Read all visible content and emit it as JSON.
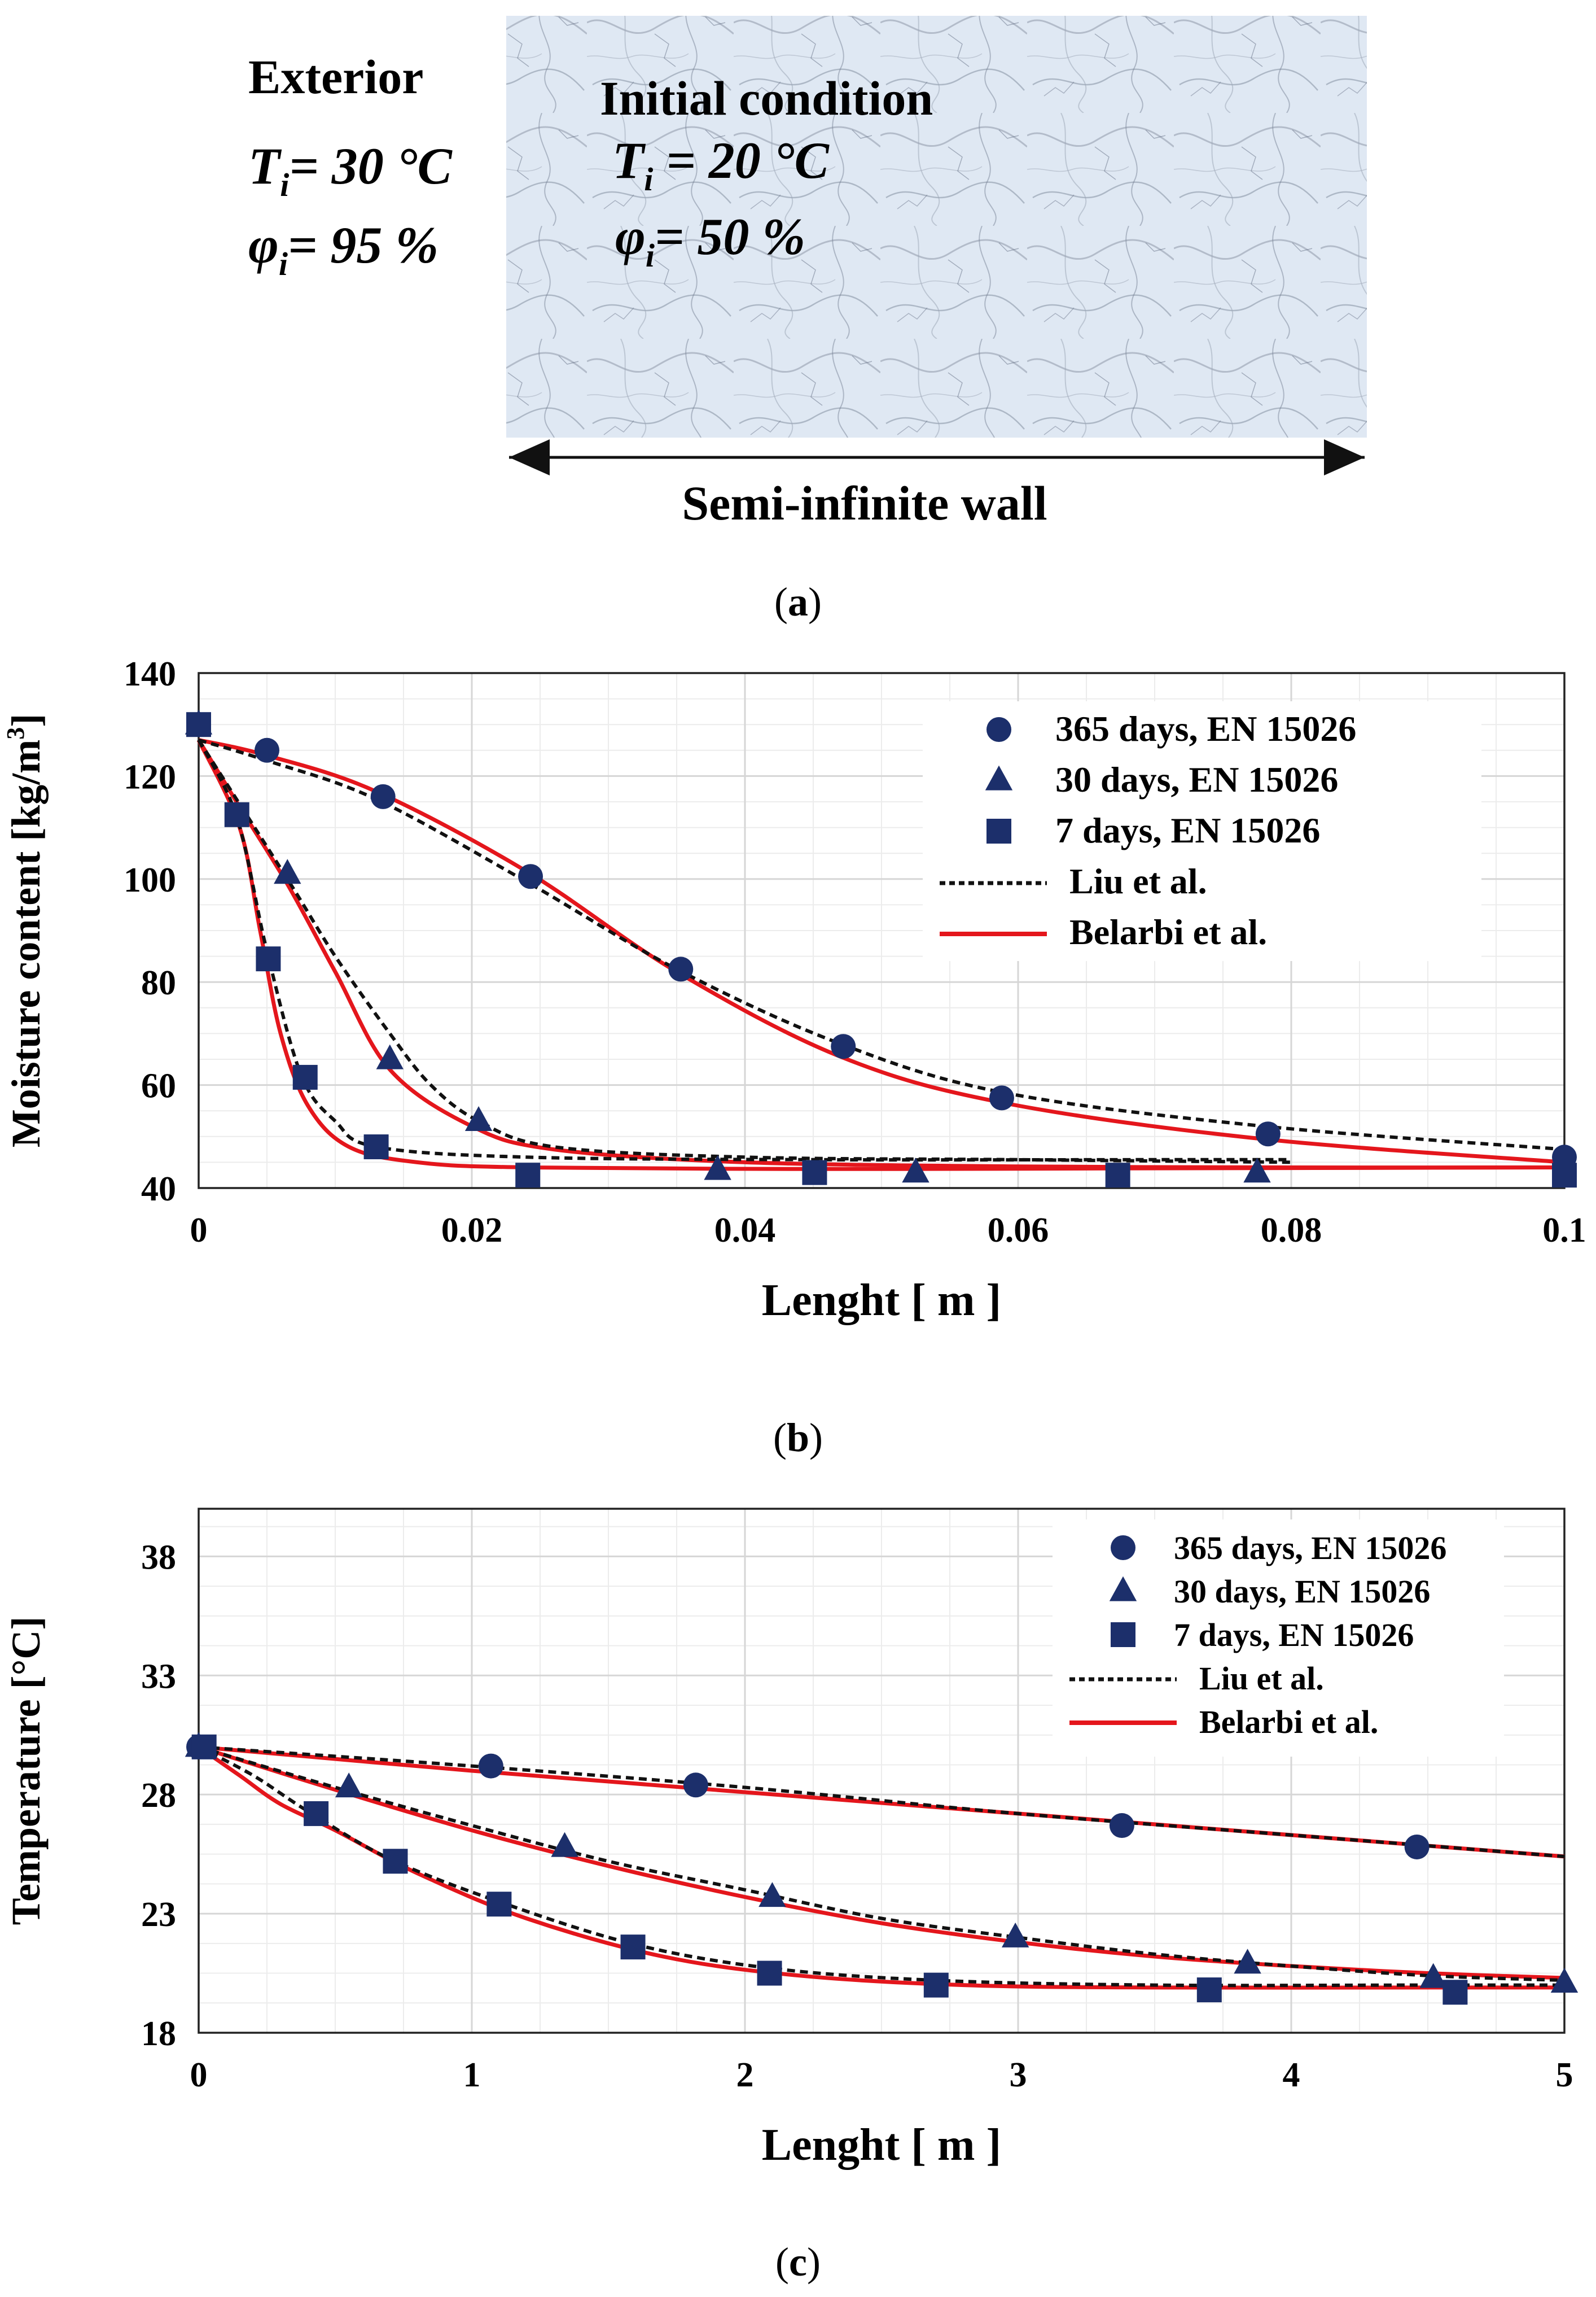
{
  "panel_a": {
    "exterior_title": "Exterior",
    "exterior_T_sym": "T",
    "exterior_T_sub": "i",
    "exterior_T_val": "= 30 °C",
    "exterior_phi_sym": "φ",
    "exterior_phi_sub": "i",
    "exterior_phi_val": "= 95 %",
    "initial_title": "Initial condition",
    "initial_T_sym": "T",
    "initial_T_sub": "i",
    "initial_T_val": " = 20 °C",
    "initial_phi_sym": "φ",
    "initial_phi_sub": "i",
    "initial_phi_val": "= 50 %",
    "wall_label": "Semi-infinite wall",
    "caption": "(a)",
    "caption_letter": "a"
  },
  "panel_b": {
    "caption": "(b)",
    "caption_letter": "b"
  },
  "panel_c": {
    "caption": "(c)",
    "caption_letter": "c"
  },
  "colors": {
    "marker": "#1c2f6b",
    "red": "#e4161c",
    "dashed": "#111111",
    "grid": "#d6d6d6"
  },
  "chart_data": [
    {
      "id": "moisture",
      "type": "line",
      "title": "",
      "xlabel": "Lenght [ m ]",
      "ylabel": "Moisture content [kg/m",
      "ylabel_sup": "3",
      "ylabel_end": "]",
      "xlim": [
        0,
        0.1
      ],
      "ylim": [
        40,
        140
      ],
      "xticks": [
        0,
        0.02,
        0.04,
        0.06,
        0.08,
        0.1
      ],
      "xtick_labels": [
        "0",
        "0.02",
        "0.04",
        "0.06",
        "0.08",
        "0.1"
      ],
      "yticks": [
        40,
        60,
        80,
        100,
        120,
        140
      ],
      "ytick_labels": [
        "40",
        "60",
        "80",
        "100",
        "120",
        "140"
      ],
      "legend": [
        {
          "label": "365 days, EN 15026",
          "kind": "circle"
        },
        {
          "label": "30 days, EN 15026",
          "kind": "triangle"
        },
        {
          "label": "7 days, EN 15026",
          "kind": "square"
        },
        {
          "label": "Liu et al.",
          "kind": "dashed"
        },
        {
          "label": "Belarbi et al.",
          "kind": "red"
        }
      ],
      "markers": [
        {
          "name": "365 days, EN 15026",
          "shape": "circle",
          "x": [
            0,
            0.005,
            0.0135,
            0.0243,
            0.0353,
            0.0472,
            0.0588,
            0.0783,
            0.1
          ],
          "y": [
            130,
            125,
            116,
            100.5,
            82.5,
            67.5,
            57.5,
            50.5,
            46
          ]
        },
        {
          "name": "30 days, EN 15026",
          "shape": "triangle",
          "x": [
            0,
            0.0065,
            0.014,
            0.0205,
            0.038,
            0.0525,
            0.0775
          ],
          "y": [
            130,
            101,
            65,
            53,
            43.5,
            43,
            43
          ]
        },
        {
          "name": "7 days, EN 15026",
          "shape": "square",
          "x": [
            0,
            0.0028,
            0.0051,
            0.0078,
            0.013,
            0.0241,
            0.0451,
            0.0673,
            0.1
          ],
          "y": [
            130,
            112.5,
            84.5,
            61.5,
            48,
            42.5,
            43,
            42.5,
            42.5
          ]
        }
      ],
      "dashed": [
        {
          "name": "Liu et al. 365 days",
          "x": [
            0,
            0.005,
            0.013,
            0.024,
            0.035,
            0.047,
            0.059,
            0.078,
            0.1
          ],
          "y": [
            127,
            123,
            115.5,
            99.5,
            82.5,
            68,
            58.5,
            52,
            47.5
          ]
        },
        {
          "name": "Liu et al. 30 days",
          "x": [
            0,
            0.0065,
            0.01,
            0.014,
            0.017,
            0.0205,
            0.026,
            0.04,
            0.06,
            0.08
          ],
          "y": [
            127,
            100,
            85,
            70,
            60,
            53,
            48,
            46,
            45.5,
            45
          ]
        },
        {
          "name": "Liu et al. 7 days",
          "x": [
            0,
            0.0028,
            0.005,
            0.0075,
            0.01,
            0.013,
            0.024,
            0.045,
            0.07,
            0.08
          ],
          "y": [
            127,
            112,
            86,
            62,
            53,
            48,
            46,
            45.5,
            45.5,
            45.5
          ]
        }
      ],
      "red": [
        {
          "name": "Belarbi et al. 365 days",
          "x": [
            0,
            0.005,
            0.013,
            0.024,
            0.035,
            0.047,
            0.059,
            0.078,
            0.1
          ],
          "y": [
            127,
            124,
            117,
            101.5,
            82,
            65.5,
            56.5,
            49.5,
            45
          ]
        },
        {
          "name": "Belarbi et al. 30 days",
          "x": [
            0,
            0.003,
            0.0065,
            0.01,
            0.014,
            0.02,
            0.026,
            0.04,
            0.06,
            0.08,
            0.1
          ],
          "y": [
            127,
            114,
            99,
            82,
            63,
            52,
            47.5,
            45,
            44.2,
            44,
            44
          ]
        },
        {
          "name": "Belarbi et al. 7 days",
          "x": [
            0,
            0.003,
            0.0045,
            0.006,
            0.008,
            0.011,
            0.016,
            0.024,
            0.045,
            0.067,
            0.1
          ],
          "y": [
            127,
            110,
            90,
            70,
            56,
            48,
            45,
            44,
            43.7,
            43.8,
            44
          ]
        }
      ]
    },
    {
      "id": "temperature",
      "type": "line",
      "title": "",
      "xlabel": "Lenght [ m ]",
      "ylabel": "Temperature [°C]",
      "xlim": [
        0,
        5
      ],
      "ylim": [
        18,
        40
      ],
      "xticks": [
        0,
        1,
        2,
        3,
        4,
        5
      ],
      "xtick_labels": [
        "0",
        "1",
        "2",
        "3",
        "4",
        "5"
      ],
      "yticks": [
        18,
        23,
        28,
        33,
        38
      ],
      "ytick_labels": [
        "18",
        "23",
        "28",
        "33",
        "38"
      ],
      "legend": [
        {
          "label": "365 days, EN 15026",
          "kind": "circle"
        },
        {
          "label": "30 days, EN 15026",
          "kind": "triangle"
        },
        {
          "label": "7 days, EN 15026",
          "kind": "square"
        },
        {
          "label": "Liu et al.",
          "kind": "dashed"
        },
        {
          "label": "Belarbi et al.",
          "kind": "red"
        }
      ],
      "markers": [
        {
          "name": "365 days, EN 15026",
          "shape": "circle",
          "x": [
            0,
            1.07,
            1.82,
            3.38,
            4.46
          ],
          "y": [
            30,
            29.2,
            28.4,
            26.7,
            25.8
          ]
        },
        {
          "name": "30 days, EN 15026",
          "shape": "triangle",
          "x": [
            0,
            0.55,
            1.34,
            2.1,
            2.99,
            3.84,
            4.52,
            5
          ],
          "y": [
            30,
            28.3,
            25.8,
            23.7,
            22,
            20.9,
            20.3,
            20.1
          ]
        },
        {
          "name": "7 days, EN 15026",
          "shape": "square",
          "x": [
            0.02,
            0.43,
            0.72,
            1.1,
            1.59,
            2.09,
            2.7,
            3.7,
            4.6
          ],
          "y": [
            30,
            27.2,
            25.2,
            23.4,
            21.6,
            20.5,
            20,
            19.8,
            19.7
          ]
        }
      ],
      "dashed": [
        {
          "name": "Liu et al. 365 days",
          "x": [
            0,
            1,
            2,
            3,
            4,
            5
          ],
          "y": [
            30,
            29.2,
            28.3,
            27.2,
            26.3,
            25.4
          ]
        },
        {
          "name": "Liu et al. 30 days",
          "x": [
            0,
            0.5,
            1,
            1.5,
            2,
            2.5,
            3,
            3.5,
            4,
            4.5,
            5
          ],
          "y": [
            30,
            28.3,
            26.7,
            25.2,
            24,
            22.8,
            22,
            21.3,
            20.8,
            20.4,
            20.2
          ]
        },
        {
          "name": "Liu et al. 7 days",
          "x": [
            0,
            0.2,
            0.4,
            0.7,
            1.1,
            1.6,
            2.1,
            2.7,
            3.5,
            4.5,
            5
          ],
          "y": [
            30,
            28.8,
            27.3,
            25.3,
            23.5,
            21.7,
            20.7,
            20.2,
            20,
            20,
            20
          ]
        }
      ],
      "red": [
        {
          "name": "Belarbi et al. 365 days",
          "x": [
            0,
            1,
            2,
            3,
            4,
            5
          ],
          "y": [
            30,
            29,
            28.1,
            27.2,
            26.3,
            25.4
          ]
        },
        {
          "name": "Belarbi et al. 30 days",
          "x": [
            0,
            0.5,
            1,
            1.5,
            2,
            2.5,
            3,
            3.5,
            4,
            4.5,
            5
          ],
          "y": [
            30,
            28.2,
            26.5,
            25,
            23.7,
            22.6,
            21.8,
            21.2,
            20.8,
            20.5,
            20.3
          ]
        },
        {
          "name": "Belarbi et al. 7 days",
          "x": [
            0,
            0.15,
            0.3,
            0.5,
            0.8,
            1.2,
            1.7,
            2.2,
            2.8,
            3.5,
            4.5,
            5
          ],
          "y": [
            30,
            28.8,
            27.6,
            26.5,
            24.7,
            22.8,
            21.2,
            20.4,
            20,
            19.9,
            19.9,
            19.9
          ]
        }
      ]
    }
  ]
}
